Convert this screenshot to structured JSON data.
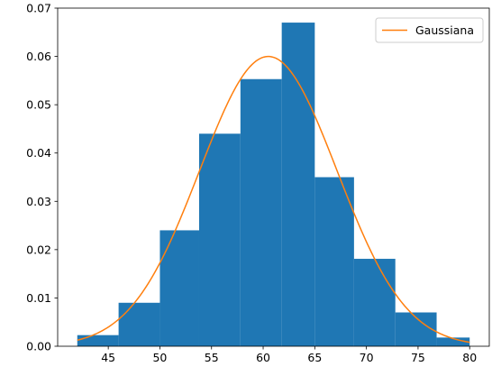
{
  "chart_data": {
    "type": "bar",
    "title": "",
    "xlabel": "",
    "ylabel": "",
    "xlim": [
      40.1,
      81.9
    ],
    "ylim": [
      0,
      0.07
    ],
    "grid": false,
    "legend_position": "top-right",
    "bins": [
      {
        "x0": 42.0,
        "x1": 46.0,
        "y": 0.0023
      },
      {
        "x0": 46.0,
        "x1": 50.0,
        "y": 0.009
      },
      {
        "x0": 50.0,
        "x1": 53.8,
        "y": 0.024
      },
      {
        "x0": 53.8,
        "x1": 57.8,
        "y": 0.044
      },
      {
        "x0": 57.8,
        "x1": 61.8,
        "y": 0.0553
      },
      {
        "x0": 61.8,
        "x1": 65.0,
        "y": 0.067
      },
      {
        "x0": 65.0,
        "x1": 68.8,
        "y": 0.035
      },
      {
        "x0": 68.8,
        "x1": 72.8,
        "y": 0.0181
      },
      {
        "x0": 72.8,
        "x1": 76.8,
        "y": 0.007
      },
      {
        "x0": 76.8,
        "x1": 80.0,
        "y": 0.0018
      }
    ],
    "bar_color": "#1f77b4",
    "series": [
      {
        "name": "Gaussiana",
        "type": "line",
        "mean": 60.5,
        "std": 6.65,
        "x_range": [
          42,
          80
        ],
        "color": "#ff7f0e"
      }
    ],
    "x_ticks": [
      45,
      50,
      55,
      60,
      65,
      70,
      75,
      80
    ],
    "x_tick_labels": [
      "45",
      "50",
      "55",
      "60",
      "65",
      "70",
      "75",
      "80"
    ],
    "y_ticks": [
      0,
      0.01,
      0.02,
      0.03,
      0.04,
      0.05,
      0.06,
      0.07
    ],
    "y_tick_labels": [
      "0.00",
      "0.01",
      "0.02",
      "0.03",
      "0.04",
      "0.05",
      "0.06",
      "0.07"
    ]
  }
}
